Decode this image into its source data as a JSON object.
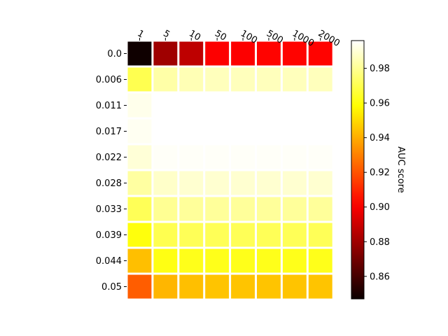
{
  "chart_data": {
    "type": "heatmap",
    "title": "",
    "x_tick_labels": [
      "1",
      "5",
      "10",
      "50",
      "100",
      "500",
      "1000",
      "2000"
    ],
    "y_tick_labels": [
      "0.0",
      "0.006",
      "0.011",
      "0.017",
      "0.022",
      "0.028",
      "0.033",
      "0.039",
      "0.044",
      "0.05"
    ],
    "values": [
      [
        0.848,
        0.88,
        0.887,
        0.901,
        0.901,
        0.902,
        0.902,
        0.902
      ],
      [
        0.97,
        0.983,
        0.985,
        0.986,
        0.986,
        0.986,
        0.986,
        0.986
      ],
      [
        0.993,
        0.997,
        0.997,
        0.997,
        0.997,
        0.997,
        0.997,
        0.997
      ],
      [
        0.994,
        0.998,
        0.998,
        0.998,
        0.998,
        0.998,
        0.998,
        0.998
      ],
      [
        0.99,
        0.995,
        0.995,
        0.995,
        0.995,
        0.995,
        0.995,
        0.995
      ],
      [
        0.982,
        0.988,
        0.989,
        0.989,
        0.989,
        0.989,
        0.989,
        0.989
      ],
      [
        0.971,
        0.98,
        0.981,
        0.981,
        0.981,
        0.981,
        0.981,
        0.981
      ],
      [
        0.96,
        0.97,
        0.971,
        0.971,
        0.971,
        0.971,
        0.971,
        0.971
      ],
      [
        0.944,
        0.961,
        0.962,
        0.962,
        0.962,
        0.962,
        0.962,
        0.962
      ],
      [
        0.922,
        0.942,
        0.944,
        0.945,
        0.945,
        0.945,
        0.945,
        0.945
      ]
    ],
    "colormap": "hot",
    "vmin": 0.847,
    "vmax": 0.996,
    "colorbar": {
      "label": "AUC score",
      "ticks": [
        0.86,
        0.88,
        0.9,
        0.92,
        0.94,
        0.96,
        0.98
      ],
      "tick_labels": [
        "0.86",
        "0.88",
        "0.90",
        "0.92",
        "0.94",
        "0.96",
        "0.98"
      ]
    },
    "x_tick_position": "top",
    "grid": false
  }
}
